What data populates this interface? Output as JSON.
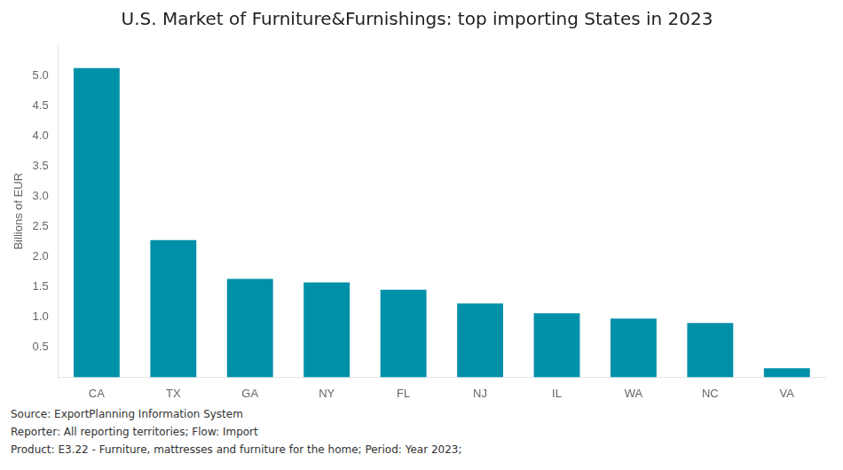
{
  "chart_data": {
    "type": "bar",
    "title": "U.S. Market of Furniture&Furnishings: top importing States in 2023",
    "ylabel": "Billions of EUR",
    "categories": [
      "CA",
      "TX",
      "GA",
      "NY",
      "FL",
      "NJ",
      "IL",
      "WA",
      "NC",
      "VA"
    ],
    "values": [
      5.12,
      2.27,
      1.63,
      1.57,
      1.45,
      1.22,
      1.06,
      0.97,
      0.9,
      0.15
    ],
    "color": "#0090a8",
    "ylim": [
      0,
      5.5
    ],
    "yticks": [
      {
        "value": 0,
        "label": ""
      },
      0.5,
      {
        "value": 1,
        "label": "1.0"
      },
      1.5,
      {
        "value": 2,
        "label": "2.0"
      },
      2.5,
      {
        "value": 3,
        "label": "3.0"
      },
      3.5,
      {
        "value": 4,
        "label": "4.0"
      },
      4.5,
      {
        "value": 5,
        "label": "5.0"
      }
    ],
    "grid": false,
    "annotations": [
      "Source: ExportPlanning Information System",
      "Reporter: All reporting territories; Flow: Import",
      "Product: E3.22 - Furniture, mattresses and furniture for the home; Period: Year 2023;"
    ]
  }
}
